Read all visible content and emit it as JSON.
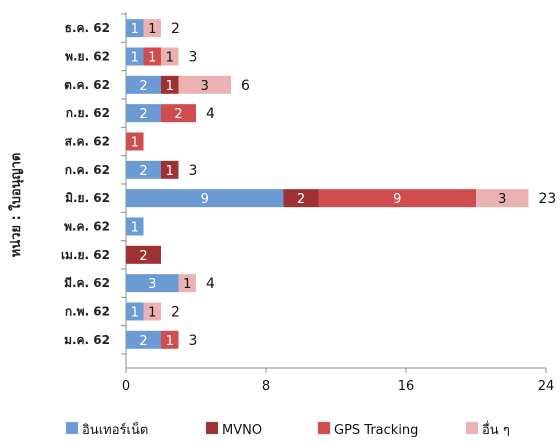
{
  "chart_data": {
    "type": "bar",
    "orientation": "horizontal",
    "stacked": true,
    "ylabel": "หน่วย : ใบอนุญาต",
    "xlim": [
      0,
      24
    ],
    "xticks": [
      "0",
      "8",
      "16",
      "24"
    ],
    "categories": [
      "ธ.ค. 62",
      "พ.ย. 62",
      "ต.ค. 62",
      "ก.ย. 62",
      "ส.ค. 62",
      "ก.ค. 62",
      "มิ.ย. 62",
      "พ.ค. 62",
      "เม.ย. 62",
      "มี.ค. 62",
      "ก.พ. 62",
      "ม.ค. 62"
    ],
    "series": [
      {
        "name": "อินเทอร์เน็ต",
        "color": "#6b9bd2",
        "label_color": "#ffffff",
        "values": [
          1,
          1,
          2,
          2,
          0,
          2,
          9,
          1,
          0,
          3,
          1,
          2
        ]
      },
      {
        "name": "MVNO",
        "color": "#9e3133",
        "label_color": "#ffffff",
        "values": [
          0,
          0,
          1,
          0,
          0,
          1,
          2,
          0,
          2,
          0,
          0,
          0
        ]
      },
      {
        "name": "GPS Tracking",
        "color": "#cf4d4f",
        "label_color": "#ffffff",
        "values": [
          0,
          1,
          0,
          2,
          1,
          0,
          9,
          0,
          0,
          0,
          0,
          1
        ]
      },
      {
        "name": "อื่น ๆ",
        "color": "#ebb2b3",
        "label_color": "#111111",
        "values": [
          1,
          1,
          3,
          0,
          0,
          0,
          3,
          0,
          0,
          1,
          1,
          0
        ]
      }
    ],
    "totals": [
      2,
      3,
      6,
      4,
      null,
      3,
      23,
      null,
      null,
      4,
      2,
      3
    ],
    "grid": false,
    "legend_position": "bottom"
  }
}
